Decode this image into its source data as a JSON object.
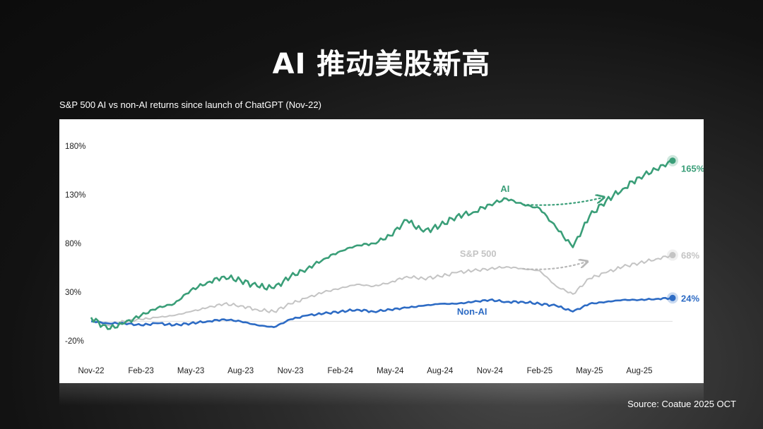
{
  "page": {
    "title": "AI 推动美股新高",
    "source": "Source: Coatue 2025 OCT"
  },
  "chart_data": {
    "type": "line",
    "title": "S&P 500 AI vs non-AI returns since launch of ChatGPT (Nov-22)",
    "xlabel": "",
    "ylabel": "",
    "x_ticks": [
      "Nov-22",
      "Feb-23",
      "May-23",
      "Aug-23",
      "Nov-23",
      "Feb-24",
      "May-24",
      "Aug-24",
      "Nov-24",
      "Feb-25",
      "May-25",
      "Aug-25"
    ],
    "y_ticks": [
      "180%",
      "130%",
      "80%",
      "30%",
      "-20%"
    ],
    "ylim": [
      -20,
      180
    ],
    "grid": false,
    "x": [
      "2022-11",
      "2022-12",
      "2023-01",
      "2023-02",
      "2023-03",
      "2023-04",
      "2023-05",
      "2023-06",
      "2023-07",
      "2023-08",
      "2023-09",
      "2023-10",
      "2023-11",
      "2023-12",
      "2024-01",
      "2024-02",
      "2024-03",
      "2024-04",
      "2024-05",
      "2024-06",
      "2024-07",
      "2024-08",
      "2024-09",
      "2024-10",
      "2024-11",
      "2024-12",
      "2025-01",
      "2025-02",
      "2025-03",
      "2025-04",
      "2025-05",
      "2025-06",
      "2025-07",
      "2025-08",
      "2025-09",
      "2025-10"
    ],
    "series": [
      {
        "name": "AI",
        "color": "#3a9e78",
        "end_label": "165%",
        "values": [
          4,
          -8,
          -2,
          6,
          14,
          18,
          32,
          40,
          46,
          42,
          36,
          34,
          46,
          54,
          64,
          72,
          78,
          80,
          88,
          104,
          92,
          98,
          108,
          112,
          120,
          126,
          120,
          116,
          96,
          76,
          108,
          124,
          136,
          148,
          156,
          165
        ]
      },
      {
        "name": "S&P 500",
        "color": "#c4c4c4",
        "end_label": "68%",
        "values": [
          2,
          -4,
          0,
          2,
          4,
          6,
          10,
          14,
          18,
          16,
          12,
          10,
          18,
          24,
          30,
          34,
          38,
          36,
          40,
          46,
          44,
          46,
          50,
          52,
          54,
          56,
          54,
          52,
          36,
          28,
          44,
          50,
          56,
          60,
          64,
          68
        ]
      },
      {
        "name": "Non-AI",
        "color": "#2d6bc4",
        "end_label": "24%",
        "values": [
          0,
          -2,
          -2,
          -4,
          -2,
          -4,
          -2,
          0,
          2,
          0,
          -4,
          -6,
          2,
          6,
          8,
          10,
          12,
          10,
          12,
          14,
          16,
          18,
          18,
          20,
          22,
          20,
          20,
          18,
          16,
          10,
          18,
          20,
          22,
          22,
          23,
          24
        ]
      }
    ],
    "annotations": [
      {
        "series": "AI",
        "from": "2025-01",
        "to": "2025-06",
        "style": "dotted-arrow"
      },
      {
        "series": "S&P 500",
        "from": "2025-01",
        "to": "2025-05",
        "style": "dotted-arrow"
      }
    ]
  }
}
